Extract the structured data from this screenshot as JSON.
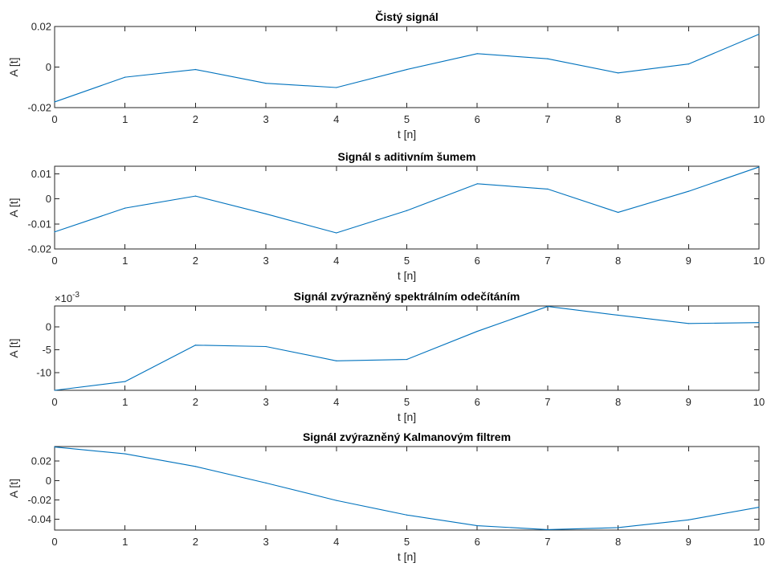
{
  "chart_data": [
    {
      "type": "line",
      "title": "Čistý signál",
      "xlabel": "t [n]",
      "ylabel": "A [t]",
      "xlim": [
        0,
        10
      ],
      "ylim": [
        -0.02,
        0.02
      ],
      "x_ticks": [
        0,
        1,
        2,
        3,
        4,
        5,
        6,
        7,
        8,
        9,
        10
      ],
      "x_tick_labels": [
        "0",
        "1",
        "2",
        "3",
        "4",
        "5",
        "6",
        "7",
        "8",
        "9",
        "10"
      ],
      "y_ticks": [
        -0.02,
        0,
        0.02
      ],
      "y_tick_labels": [
        "-0.02",
        "0",
        "0.02"
      ],
      "exponent_label": "",
      "color": "#0072BD",
      "x": [
        0,
        1,
        2,
        3,
        4,
        5,
        6,
        7,
        8,
        9,
        10
      ],
      "y": [
        -0.0172,
        -0.005,
        -0.0012,
        -0.008,
        -0.0101,
        -0.0012,
        0.0066,
        0.0041,
        -0.0029,
        0.0015,
        0.0162
      ]
    },
    {
      "type": "line",
      "title": "Signál s aditivním šumem",
      "xlabel": "t [n]",
      "ylabel": "A [t]",
      "xlim": [
        0,
        10
      ],
      "ylim": [
        -0.02,
        0.013
      ],
      "x_ticks": [
        0,
        1,
        2,
        3,
        4,
        5,
        6,
        7,
        8,
        9,
        10
      ],
      "x_tick_labels": [
        "0",
        "1",
        "2",
        "3",
        "4",
        "5",
        "6",
        "7",
        "8",
        "9",
        "10"
      ],
      "y_ticks": [
        -0.02,
        -0.01,
        0,
        0.01
      ],
      "y_tick_labels": [
        "-0.02",
        "-0.01",
        "0",
        "0.01"
      ],
      "exponent_label": "",
      "color": "#0072BD",
      "x": [
        0,
        1,
        2,
        3,
        4,
        5,
        6,
        7,
        8,
        9,
        10
      ],
      "y": [
        -0.0132,
        -0.0037,
        0.0011,
        -0.006,
        -0.0136,
        -0.0047,
        0.006,
        0.0039,
        -0.0054,
        0.003,
        0.0127
      ]
    },
    {
      "type": "line",
      "title": "Signál zvýrazněný spektrálním odečítáním",
      "xlabel": "t [n]",
      "ylabel": "A [t]",
      "xlim": [
        0,
        10
      ],
      "ylim": [
        -13.8,
        4.5
      ],
      "x_ticks": [
        0,
        1,
        2,
        3,
        4,
        5,
        6,
        7,
        8,
        9,
        10
      ],
      "x_tick_labels": [
        "0",
        "1",
        "2",
        "3",
        "4",
        "5",
        "6",
        "7",
        "8",
        "9",
        "10"
      ],
      "y_ticks": [
        -10,
        -5,
        0
      ],
      "y_tick_labels": [
        "-10",
        "-5",
        "0"
      ],
      "exponent_label": "×10",
      "exponent_value": "-3",
      "color": "#0072BD",
      "x": [
        0,
        1,
        2,
        3,
        4,
        5,
        6,
        7,
        8,
        9,
        10
      ],
      "y": [
        -13.8,
        -11.9,
        -4.0,
        -4.3,
        -7.4,
        -7.1,
        -1.0,
        4.4,
        2.5,
        0.7,
        0.9
      ]
    },
    {
      "type": "line",
      "title": "Signál zvýrazněný Kalmanovým filtrem",
      "xlabel": "t [n]",
      "ylabel": "A [t]",
      "xlim": [
        0,
        10
      ],
      "ylim": [
        -0.051,
        0.035
      ],
      "x_ticks": [
        0,
        1,
        2,
        3,
        4,
        5,
        6,
        7,
        8,
        9,
        10
      ],
      "x_tick_labels": [
        "0",
        "1",
        "2",
        "3",
        "4",
        "5",
        "6",
        "7",
        "8",
        "9",
        "10"
      ],
      "y_ticks": [
        -0.04,
        -0.02,
        0,
        0.02
      ],
      "y_tick_labels": [
        "-0.04",
        "-0.02",
        "0",
        "0.02"
      ],
      "exponent_label": "",
      "color": "#0072BD",
      "x": [
        0,
        1,
        2,
        3,
        4,
        5,
        6,
        7,
        8,
        9,
        10
      ],
      "y": [
        0.0345,
        0.0275,
        0.0145,
        -0.0025,
        -0.0205,
        -0.0355,
        -0.0465,
        -0.0505,
        -0.0485,
        -0.0405,
        -0.0275
      ]
    }
  ]
}
